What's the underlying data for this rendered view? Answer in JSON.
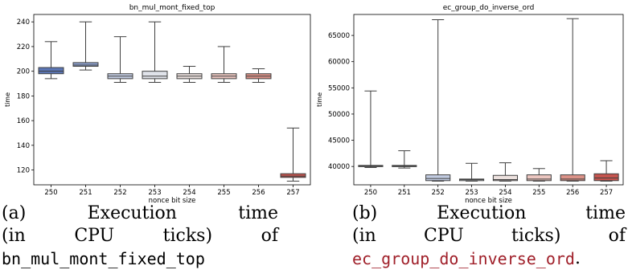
{
  "chart_data": [
    {
      "type": "boxplot",
      "title": "bn_mul_mont_fixed_top",
      "xlabel": "nonce bit size",
      "ylabel": "time",
      "categories": [
        "250",
        "251",
        "252",
        "253",
        "254",
        "255",
        "256",
        "257"
      ],
      "ylim": [
        108,
        246
      ],
      "yticks": [
        120,
        140,
        160,
        180,
        200,
        220,
        240
      ],
      "boxes": [
        {
          "whislo": 194,
          "q1": 198,
          "med": 200,
          "q3": 203,
          "whishi": 224,
          "color": "#5b76b6"
        },
        {
          "whislo": 201,
          "q1": 204,
          "med": 205,
          "q3": 207,
          "whishi": 240,
          "color": "#8ea2cf"
        },
        {
          "whislo": 191,
          "q1": 194,
          "med": 196,
          "q3": 198,
          "whishi": 228,
          "color": "#c2cce2"
        },
        {
          "whislo": 191,
          "q1": 194,
          "med": 196,
          "q3": 200,
          "whishi": 240,
          "color": "#e0e3ea"
        },
        {
          "whislo": 191,
          "q1": 194,
          "med": 196,
          "q3": 198,
          "whishi": 204,
          "color": "#ece1de"
        },
        {
          "whislo": 191,
          "q1": 194,
          "med": 196,
          "q3": 198,
          "whishi": 220,
          "color": "#ecc6c0"
        },
        {
          "whislo": 191,
          "q1": 194,
          "med": 196,
          "q3": 198,
          "whishi": 202,
          "color": "#dc9288"
        },
        {
          "whislo": 111,
          "q1": 114,
          "med": 115,
          "q3": 117,
          "whishi": 154,
          "color": "#c5544e"
        }
      ]
    },
    {
      "type": "boxplot",
      "title": "ec_group_do_inverse_ord",
      "xlabel": "nonce bit size",
      "ylabel": "time",
      "categories": [
        "250",
        "251",
        "252",
        "253",
        "254",
        "255",
        "256",
        "257"
      ],
      "ylim": [
        36500,
        69000
      ],
      "yticks": [
        40000,
        45000,
        50000,
        55000,
        60000,
        65000
      ],
      "boxes": [
        {
          "whislo": 39800,
          "q1": 40000,
          "med": 40100,
          "q3": 40200,
          "whishi": 54400,
          "color": "#5b76b6"
        },
        {
          "whislo": 39700,
          "q1": 40000,
          "med": 40100,
          "q3": 40200,
          "whishi": 43000,
          "color": "#8ea2cf"
        },
        {
          "whislo": 37200,
          "q1": 37300,
          "med": 37700,
          "q3": 38400,
          "whishi": 68000,
          "color": "#c2cce2"
        },
        {
          "whislo": 37200,
          "q1": 37300,
          "med": 37500,
          "q3": 37600,
          "whishi": 40600,
          "color": "#e0e3ea"
        },
        {
          "whislo": 37200,
          "q1": 37300,
          "med": 37500,
          "q3": 38300,
          "whishi": 40700,
          "color": "#ece1de"
        },
        {
          "whislo": 37200,
          "q1": 37300,
          "med": 37600,
          "q3": 38400,
          "whishi": 39600,
          "color": "#ecc6c0"
        },
        {
          "whislo": 37200,
          "q1": 37300,
          "med": 37600,
          "q3": 38400,
          "whishi": 68200,
          "color": "#dc9288"
        },
        {
          "whislo": 37200,
          "q1": 37300,
          "med": 37800,
          "q3": 38600,
          "whishi": 41100,
          "color": "#c5544e"
        }
      ]
    }
  ],
  "captions": [
    {
      "label": "(a)",
      "w1": "Execution",
      "w2": "time",
      "w3": "(in",
      "w4": "CPU",
      "w5": "ticks)",
      "w6": "of",
      "fn": "bn_mul_mont_fixed_top"
    },
    {
      "label": "(b)",
      "w1": "Execution",
      "w2": "time",
      "w3": "(in",
      "w4": "CPU",
      "w5": "ticks)",
      "w6": "of",
      "fn": "ec_group_do_inverse_ord",
      "tail": "."
    }
  ]
}
